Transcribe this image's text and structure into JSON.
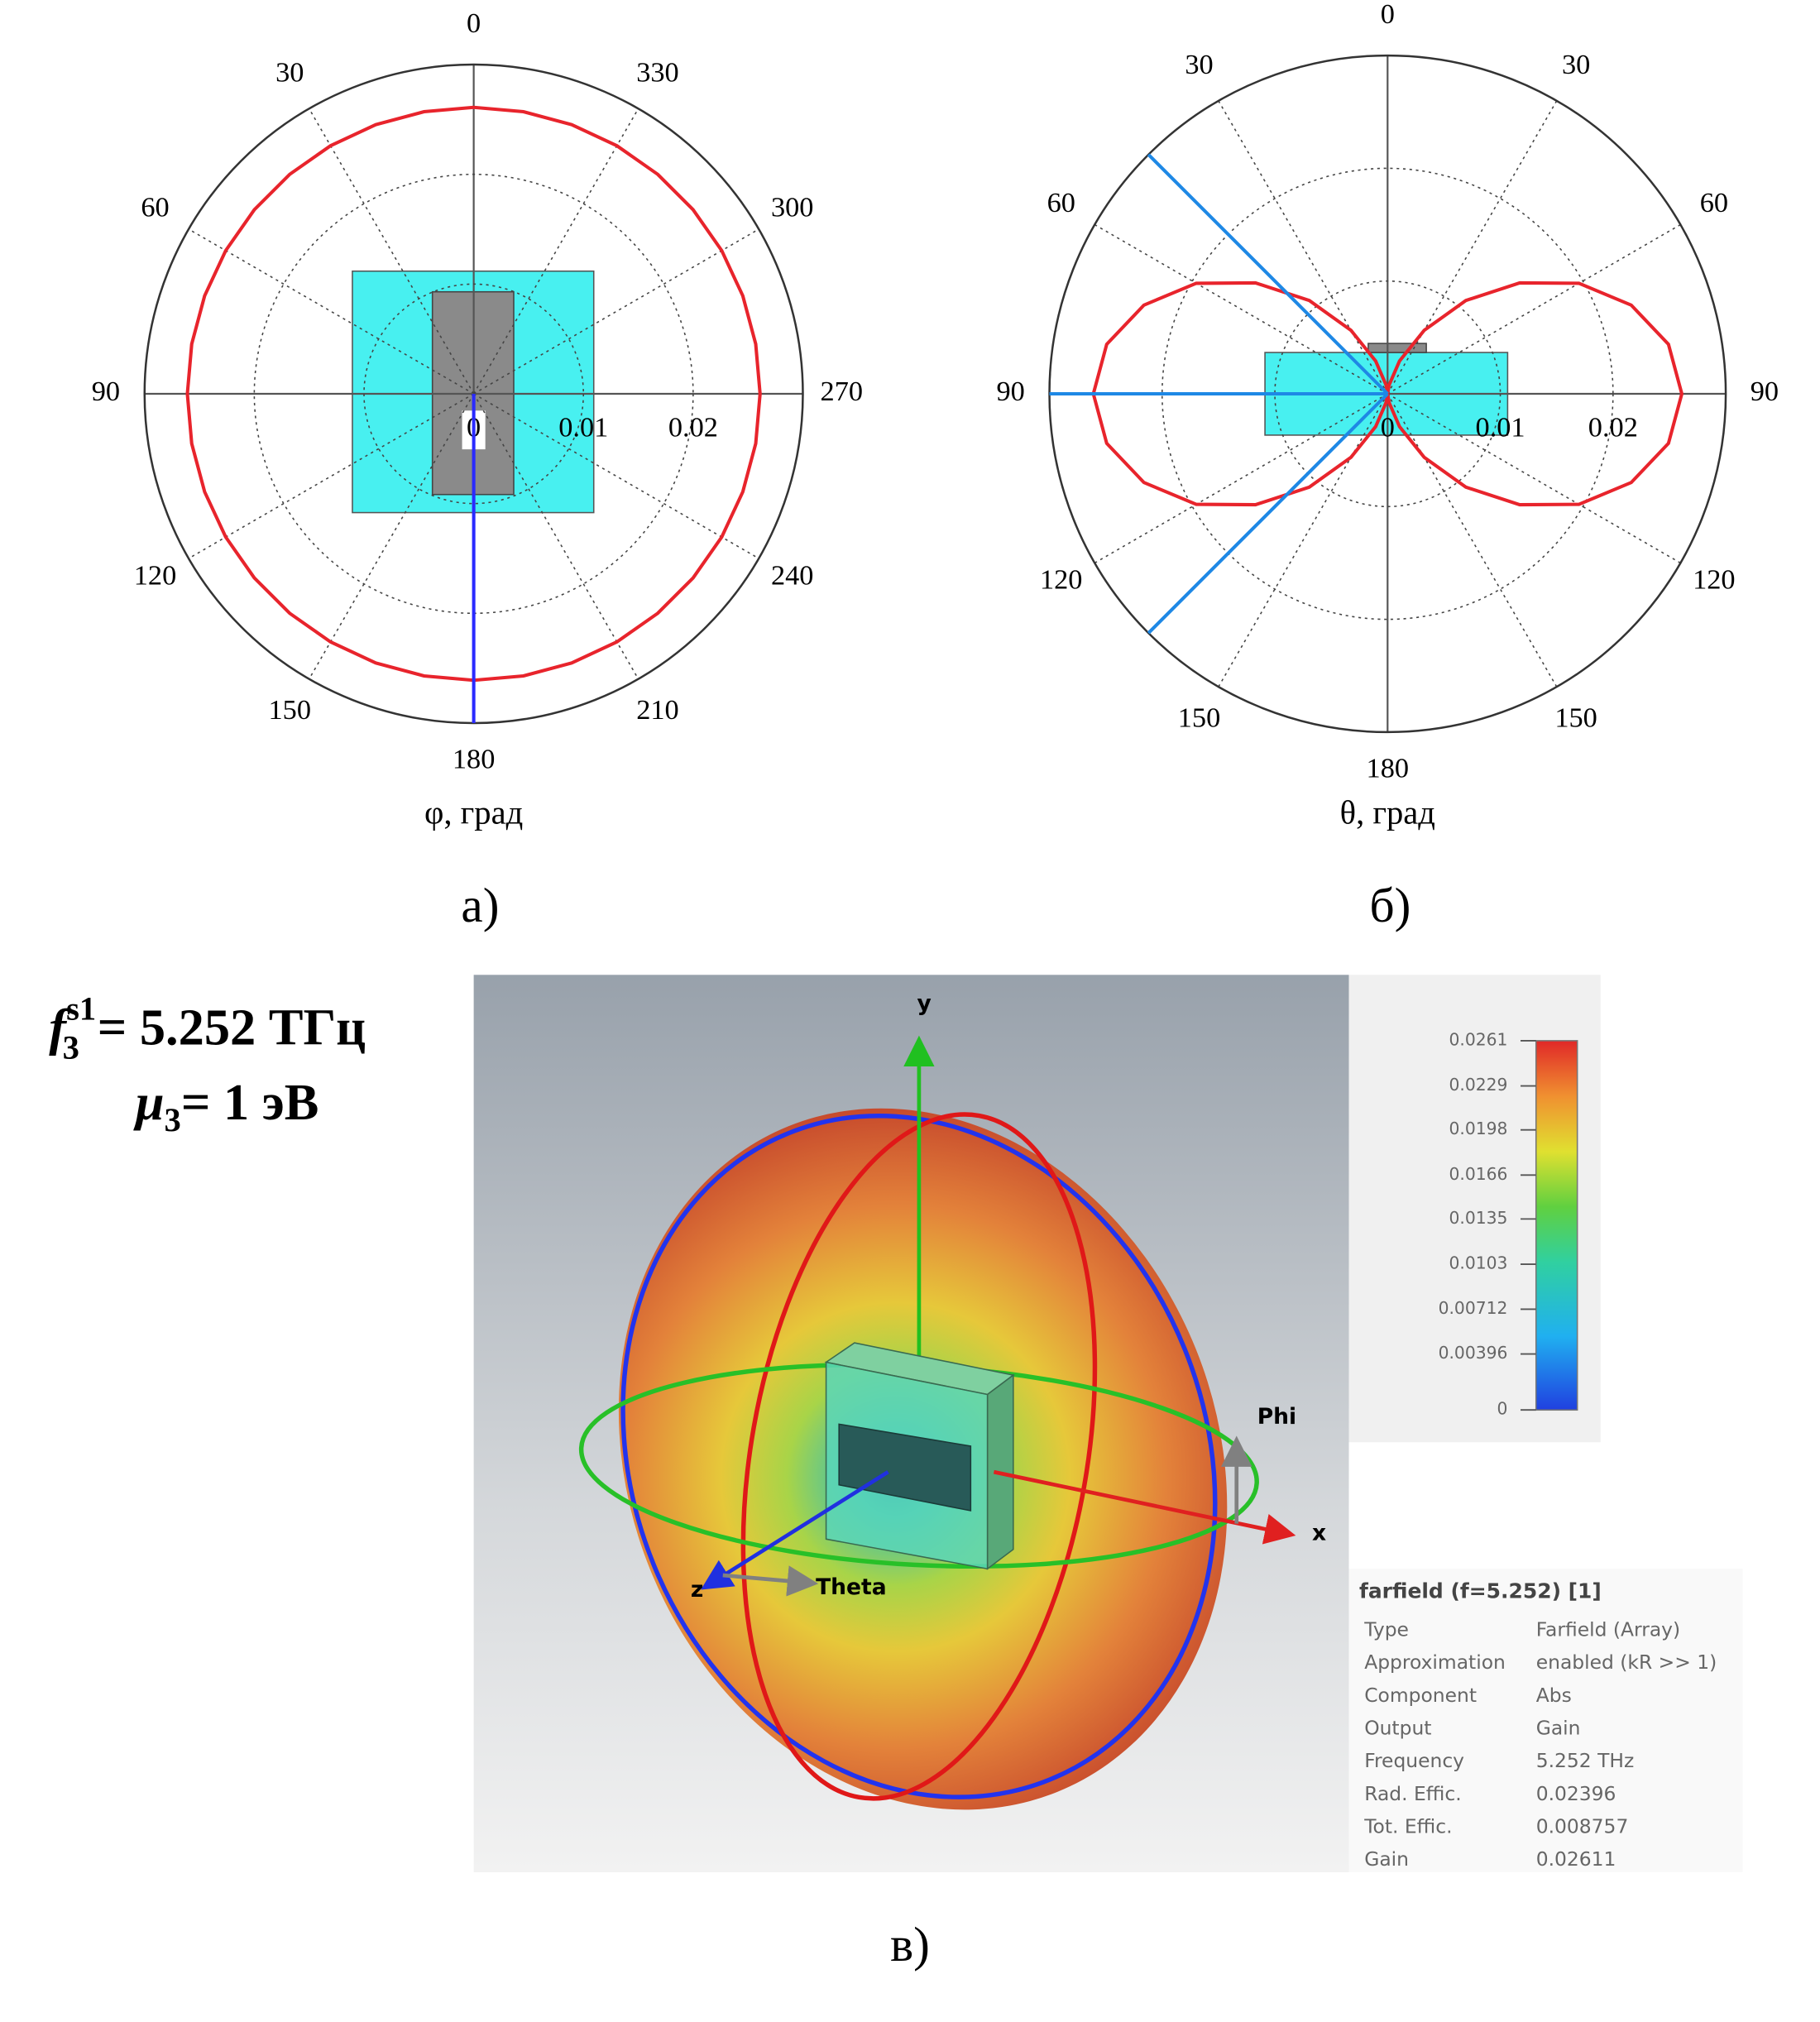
{
  "chart_data": [
    {
      "type": "polar",
      "axis_label": "φ, град",
      "panel_label": "а)",
      "theta": [
        0,
        10,
        20,
        30,
        40,
        50,
        60,
        70,
        80,
        90,
        100,
        110,
        120,
        130,
        140,
        150,
        160,
        170,
        180,
        190,
        200,
        210,
        220,
        230,
        240,
        250,
        260,
        270,
        280,
        290,
        300,
        310,
        320,
        330,
        340,
        350
      ],
      "values": [
        0.0261,
        0.0261,
        0.0261,
        0.0261,
        0.0261,
        0.0261,
        0.0261,
        0.0261,
        0.0261,
        0.0261,
        0.0261,
        0.0261,
        0.0261,
        0.0261,
        0.0261,
        0.0261,
        0.0261,
        0.0261,
        0.0261,
        0.0261,
        0.0261,
        0.0261,
        0.0261,
        0.0261,
        0.0261,
        0.0261,
        0.0261,
        0.0261,
        0.0261,
        0.0261,
        0.0261,
        0.0261,
        0.0261,
        0.0261,
        0.0261,
        0.0261
      ],
      "color": "#e8242c",
      "rlim": [
        0,
        0.03
      ],
      "rticks": [
        0,
        0.01,
        0.02
      ],
      "thetaticks": [
        0,
        30,
        60,
        90,
        120,
        150,
        180,
        210,
        240,
        270,
        300,
        330
      ],
      "direction": "counterclockwise",
      "marker_angles": [
        180
      ],
      "marker_color": "#2a2aff"
    },
    {
      "type": "polar",
      "axis_label": "θ, град",
      "panel_label": "б)",
      "theta": [
        0,
        10,
        20,
        30,
        40,
        50,
        60,
        70,
        80,
        90,
        100,
        110,
        120,
        130,
        140,
        150,
        160,
        170,
        180,
        190,
        200,
        210,
        220,
        230,
        240,
        250,
        260,
        270,
        280,
        290,
        300,
        310,
        320,
        330,
        340,
        350
      ],
      "values": [
        0,
        0.0008,
        0.0031,
        0.0065,
        0.0108,
        0.0153,
        0.0196,
        0.023,
        0.0253,
        0.0261,
        0.0253,
        0.023,
        0.0196,
        0.0153,
        0.0108,
        0.0065,
        0.0031,
        0.0008,
        0,
        0.0008,
        0.0031,
        0.0065,
        0.0108,
        0.0153,
        0.0196,
        0.023,
        0.0253,
        0.0261,
        0.0253,
        0.023,
        0.0196,
        0.0153,
        0.0108,
        0.0065,
        0.0031,
        0.0008
      ],
      "color": "#e8242c",
      "rlim": [
        0,
        0.03
      ],
      "rticks": [
        0,
        0.01,
        0.02
      ],
      "thetaticks": [
        0,
        30,
        60,
        90,
        120,
        150,
        180,
        {
          "value": 210,
          "label": "150"
        },
        {
          "value": 240,
          "label": "120"
        },
        {
          "value": 270,
          "label": "90"
        },
        {
          "value": 300,
          "label": "60"
        },
        {
          "value": 330,
          "label": "30"
        }
      ],
      "direction": "counterclockwise",
      "marker_angles": [
        45,
        90,
        135
      ],
      "marker_color": "#1e88e5"
    }
  ],
  "formula": [
    {
      "symbol": "f",
      "sup": "s1",
      "sub": "3",
      "text": "= 5.252 ТГц"
    },
    {
      "symbol": "μ",
      "sub": "3",
      "text": "= 1 эВ"
    }
  ],
  "scene": {
    "x": "x",
    "y": "y",
    "z": "z",
    "phi": "Phi",
    "theta": "Theta"
  },
  "colorbar": {
    "lim": [
      0,
      0.0261
    ],
    "ticks": [
      0.0261,
      0.0229,
      0.0198,
      0.0166,
      0.0135,
      0.0103,
      0.00712,
      0.00396,
      0
    ]
  },
  "info": {
    "title": "farfield (f=5.252) [1]",
    "rows": [
      [
        "Type",
        "Farfield (Array)"
      ],
      [
        "Approximation",
        "enabled (kR >> 1)"
      ],
      [
        "Component",
        "Abs"
      ],
      [
        "Output",
        "Gain"
      ],
      [
        "Frequency",
        "5.252 THz"
      ],
      [
        "Rad. Effic.",
        "0.02396"
      ],
      [
        "Tot. Effic.",
        "0.008757"
      ],
      [
        "Gain",
        "0.02611"
      ]
    ]
  },
  "panel_label": "в)"
}
